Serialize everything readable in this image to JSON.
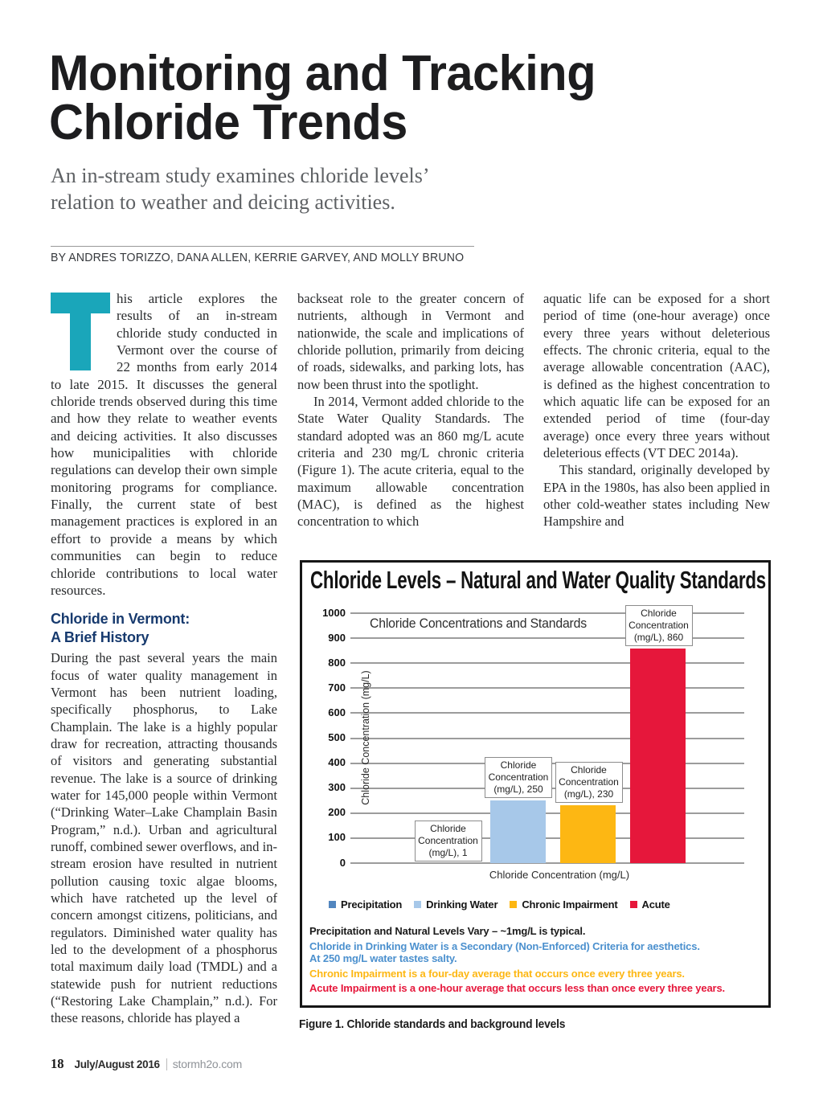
{
  "header": {
    "title_line1": "Monitoring and Tracking",
    "title_line2": "Chloride Trends",
    "subtitle": "An in-stream study examines chloride levels’ relation to weather and deicing activities.",
    "byline": "BY ANDRES TORIZZO, DANA ALLEN, KERRIE GARVEY, AND MOLLY BRUNO"
  },
  "article": {
    "dropcap_letter": "T",
    "intro_rest": "his article explores the results of an in-stream chloride study conducted in Vermont over the course of 22 months from early 2014 to late 2015. It discusses the general chloride trends observed during this time and how they relate to weather events and deicing activities. It also discusses how municipalities with chloride regulations can develop their own simple monitoring programs for compliance. Finally, the current state of best management practices is explored in an effort to provide a means by which communities can begin to reduce chloride contributions to local water resources.",
    "section_heading": "Chloride in Vermont:\nA Brief History",
    "history_para": "During the past several years the main focus of water quality management in Vermont has been nutrient loading, specifically phosphorus, to Lake Champlain. The lake is a highly popular draw for recreation, attracting thousands of visitors and generating substantial revenue. The lake is a source of drinking water for 145,000 people within Vermont (“Drinking Water–Lake Champlain Basin Program,” n.d.). Urban and agricultural runoff, combined sewer overflows, and in-stream erosion have resulted in nutrient pollution causing toxic algae blooms, which have ratcheted up the level of concern amongst citizens, politicians, and regulators. Diminished water quality has led to the development of a phosphorus total maximum daily load (TMDL) and a statewide push for nutrient reductions (“Restoring Lake Champlain,” n.d.). For these reasons, chloride has played a",
    "col2_para1": "backseat role to the greater concern of nutrients, although in Vermont and nationwide, the scale and implications of chloride pollution, primarily from deicing of roads, sidewalks, and parking lots, has now been thrust into the spotlight.",
    "col2_para2": "In 2014, Vermont added chloride to the State Water Quality Standards. The standard adopted was an 860 mg/L acute criteria and 230 mg/L chronic criteria (Figure 1). The acute criteria, equal to the maximum allowable concentration (MAC), is defined as the highest concentration to which",
    "col3_para1": "aquatic life can be exposed for a short period of time (one-hour average) once every three years without deleterious effects. The chronic criteria, equal to the average allowable concentration (AAC), is defined as the highest concentration to which aquatic life can be exposed for an extended period of time (four-day average) once every three years without deleterious effects (VT DEC 2014a).",
    "col3_para2": "This standard, originally developed by EPA in the 1980s, has also been applied in other cold-weather states including New Hampshire and"
  },
  "figure": {
    "box_title": "Chloride Levels – Natural and Water Quality Standards",
    "caption": "Figure 1. Chloride standards and background levels"
  },
  "chart_data": {
    "type": "bar",
    "title": "Chloride Concentrations and Standards",
    "categories": [
      "Precipitation",
      "Drinking Water",
      "Chronic Impairment",
      "Acute"
    ],
    "values": [
      1,
      250,
      230,
      860
    ],
    "bar_colors": [
      "#5286bf",
      "#a7c8e9",
      "#fdb713",
      "#e6173b"
    ],
    "data_label_lines": [
      [
        "Chloride",
        "Concentration",
        "(mg/L), 1"
      ],
      [
        "Chloride",
        "Concentration",
        "(mg/L), 250"
      ],
      [
        "Chloride",
        "Concentration",
        "(mg/L), 230"
      ],
      [
        "Chloride",
        "Concentration",
        "(mg/L), 860"
      ]
    ],
    "xlabel": "Chloride Concentration (mg/L)",
    "ylabel": "Chloride Concentration (mg/L)",
    "ylim": [
      0,
      1000
    ],
    "ytick_step": 100,
    "grid": true,
    "legend_position": "bottom",
    "legend": [
      {
        "label": "Precipitation",
        "color": "#5286bf"
      },
      {
        "label": "Drinking Water",
        "color": "#a7c8e9"
      },
      {
        "label": "Chronic Impairment",
        "color": "#fdb713"
      },
      {
        "label": "Acute",
        "color": "#e6173b"
      }
    ],
    "notes": [
      {
        "lines": [
          "Precipitation and Natural Levels Vary – ~1mg/L is typical."
        ],
        "color": "#1a1a1a"
      },
      {
        "lines": [
          "Chloride in Drinking Water is a Secondary (Non-Enforced) Criteria for aesthetics.",
          "At 250 mg/L water tastes salty."
        ],
        "color": "#4b90ce"
      },
      {
        "lines": [
          "Chronic Impairment is a four-day average that occurs once every three years."
        ],
        "color": "#fdb713"
      },
      {
        "lines": [
          "Acute Impairment is a one-hour average that occurs less than once every three years."
        ],
        "color": "#e6173b"
      }
    ]
  },
  "footer": {
    "page_number": "18",
    "issue": "July/August 2016",
    "site": "stormh2o.com"
  },
  "colors": {
    "dropcap": "#1aa6ba",
    "section_heading": "#173a6e"
  }
}
